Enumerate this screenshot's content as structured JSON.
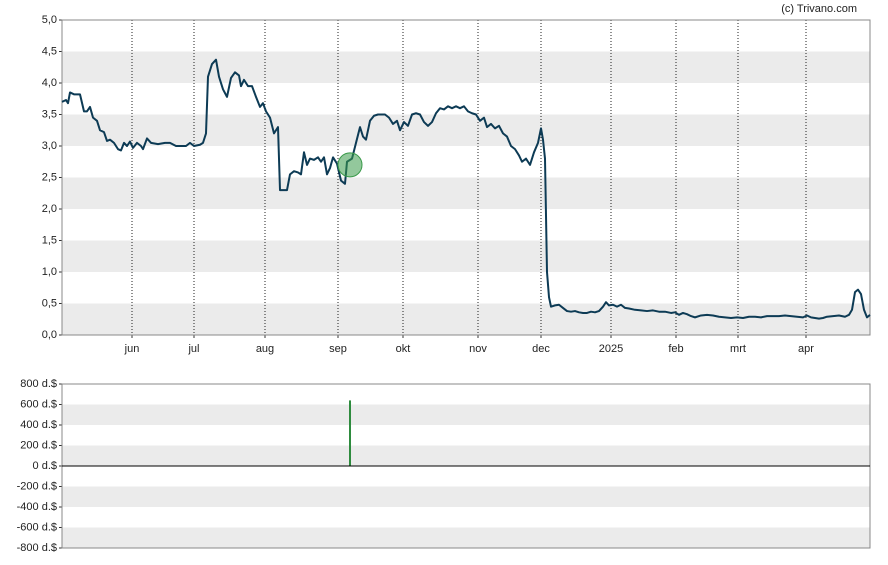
{
  "copyright": "(c) Trivano.com",
  "chart_data": [
    {
      "type": "line",
      "color": "#0d3b55",
      "xlim": [
        0,
        404
      ],
      "xticks": [
        {
          "value": 35,
          "label": "jun"
        },
        {
          "value": 66,
          "label": "jul"
        },
        {
          "value": 101.5,
          "label": "aug"
        },
        {
          "value": 138,
          "label": "sep"
        },
        {
          "value": 170.5,
          "label": "okt"
        },
        {
          "value": 208,
          "label": "nov"
        },
        {
          "value": 239.5,
          "label": "dec"
        },
        {
          "value": 274.5,
          "label": "2025"
        },
        {
          "value": 307,
          "label": "feb"
        },
        {
          "value": 338,
          "label": "mrt"
        },
        {
          "value": 372,
          "label": "apr"
        }
      ],
      "ylim": [
        0,
        5
      ],
      "yticks": [
        {
          "value": 0,
          "label": "0,0"
        },
        {
          "value": 0.5,
          "label": "0,5"
        },
        {
          "value": 1,
          "label": "1,0"
        },
        {
          "value": 1.5,
          "label": "1,5"
        },
        {
          "value": 2,
          "label": "2,0"
        },
        {
          "value": 2.5,
          "label": "2,5"
        },
        {
          "value": 3,
          "label": "3,0"
        },
        {
          "value": 3.5,
          "label": "3,5"
        },
        {
          "value": 4,
          "label": "4,0"
        },
        {
          "value": 4.5,
          "label": "4,5"
        },
        {
          "value": 5,
          "label": "5,0"
        }
      ],
      "x": [
        0,
        2,
        3,
        4,
        6,
        9,
        11,
        12.5,
        14,
        15.5,
        17.5,
        19,
        21,
        22.5,
        24,
        26,
        28,
        29.5,
        31,
        32.5,
        34,
        35.5,
        37.5,
        39.5,
        40.5,
        42.5,
        44.5,
        48,
        51.5,
        54,
        57,
        62,
        64,
        66,
        69,
        70.5,
        72,
        73,
        75,
        77,
        78.5,
        80.5,
        82.5,
        84.5,
        86.5,
        88.5,
        89.5,
        91,
        93,
        95,
        97,
        99,
        100.5,
        102,
        104,
        106,
        108,
        109,
        112.5,
        114,
        116,
        118,
        119.5,
        121,
        122.5,
        124,
        126,
        128,
        129.5,
        131,
        132.5,
        134,
        135.5,
        137.5,
        139.5,
        141.5,
        142.5,
        145,
        147,
        149,
        150.5,
        152,
        154,
        156,
        158,
        161.5,
        163.5,
        165.5,
        167.5,
        169,
        171,
        173,
        175,
        177,
        179,
        181,
        183,
        185,
        187,
        189,
        191,
        193,
        195,
        197,
        199,
        201,
        203,
        205,
        207,
        209,
        211,
        212.5,
        214.5,
        216.5,
        218.5,
        220.5,
        222.5,
        224.5,
        226.5,
        228.5,
        230,
        232,
        234,
        236,
        238,
        239.5,
        240.5,
        241.5,
        242.5,
        243.5,
        244.5,
        246.5,
        248.5,
        250.5,
        252.5,
        254.5,
        256.5,
        258.5,
        260.5,
        262.5,
        264.5,
        266.5,
        268.5,
        270.5,
        272,
        273.5,
        275.5,
        277.5,
        279.5,
        281.5,
        283.5,
        286.5,
        289.5,
        292.5,
        295.5,
        298.5,
        301.5,
        304.5,
        306.5,
        308.5,
        310.5,
        312.5,
        314.5,
        316.5,
        319.5,
        322.5,
        325.5,
        328.5,
        331.5,
        334.5,
        337.5,
        340.5,
        343.5,
        346.5,
        349.5,
        352.5,
        355.5,
        358.5,
        361.5,
        364.5,
        367.5,
        370.5,
        372.5,
        374.5,
        376.5,
        378.5,
        380.5,
        382.5,
        385.5,
        388.5,
        391.5,
        393.5,
        395,
        396.5,
        398,
        399.5,
        401,
        402.5,
        404
      ],
      "values": [
        3.7,
        3.73,
        3.68,
        3.85,
        3.82,
        3.82,
        3.55,
        3.55,
        3.62,
        3.45,
        3.4,
        3.25,
        3.22,
        3.08,
        3.1,
        3.05,
        2.95,
        2.93,
        3.05,
        3.0,
        3.07,
        2.97,
        3.05,
        3.0,
        2.95,
        3.12,
        3.05,
        3.03,
        3.05,
        3.05,
        3.0,
        3.0,
        3.05,
        3.0,
        3.02,
        3.05,
        3.2,
        4.1,
        4.3,
        4.37,
        4.1,
        3.9,
        3.78,
        4.08,
        4.17,
        4.12,
        3.95,
        4.05,
        3.95,
        3.95,
        3.78,
        3.62,
        3.68,
        3.55,
        3.45,
        3.2,
        3.3,
        2.3,
        2.3,
        2.55,
        2.6,
        2.58,
        2.55,
        2.9,
        2.7,
        2.8,
        2.78,
        2.82,
        2.75,
        2.82,
        2.55,
        2.65,
        2.82,
        2.72,
        2.45,
        2.4,
        2.75,
        2.8,
        3.05,
        3.3,
        3.15,
        3.1,
        3.4,
        3.48,
        3.5,
        3.5,
        3.45,
        3.35,
        3.4,
        3.25,
        3.38,
        3.32,
        3.5,
        3.52,
        3.5,
        3.38,
        3.32,
        3.38,
        3.52,
        3.6,
        3.58,
        3.63,
        3.6,
        3.63,
        3.6,
        3.63,
        3.55,
        3.52,
        3.5,
        3.4,
        3.45,
        3.3,
        3.35,
        3.28,
        3.32,
        3.2,
        3.15,
        3.0,
        2.95,
        2.85,
        2.75,
        2.8,
        2.7,
        2.9,
        3.05,
        3.28,
        3.1,
        2.8,
        1.0,
        0.6,
        0.45,
        0.47,
        0.48,
        0.43,
        0.38,
        0.37,
        0.38,
        0.36,
        0.35,
        0.35,
        0.37,
        0.36,
        0.38,
        0.45,
        0.52,
        0.47,
        0.48,
        0.45,
        0.48,
        0.43,
        0.42,
        0.4,
        0.39,
        0.38,
        0.39,
        0.37,
        0.37,
        0.35,
        0.36,
        0.32,
        0.35,
        0.33,
        0.3,
        0.28,
        0.31,
        0.32,
        0.31,
        0.29,
        0.28,
        0.27,
        0.28,
        0.27,
        0.29,
        0.29,
        0.28,
        0.3,
        0.3,
        0.3,
        0.31,
        0.3,
        0.29,
        0.28,
        0.31,
        0.28,
        0.27,
        0.26,
        0.27,
        0.29,
        0.3,
        0.31,
        0.29,
        0.32,
        0.4,
        0.68,
        0.72,
        0.65,
        0.4,
        0.28,
        0.32
      ],
      "marker": {
        "x": 144,
        "value": 2.7,
        "color": "#3a9a4a"
      },
      "band_color": "#ebebeb",
      "grid": true
    },
    {
      "type": "bar",
      "color": "#2e8b3e",
      "xlim": [
        0,
        404
      ],
      "ylim": [
        -800,
        800
      ],
      "yticks": [
        {
          "value": -800,
          "label": "-800 d.$"
        },
        {
          "value": -600,
          "label": "-600 d.$"
        },
        {
          "value": -400,
          "label": "-400 d.$"
        },
        {
          "value": -200,
          "label": "-200 d.$"
        },
        {
          "value": 0,
          "label": "0 d.$"
        },
        {
          "value": 200,
          "label": "200 d.$"
        },
        {
          "value": 400,
          "label": "400 d.$"
        },
        {
          "value": 600,
          "label": "600 d.$"
        },
        {
          "value": 800,
          "label": "800 d.$"
        }
      ],
      "x": [
        144
      ],
      "values": [
        640
      ],
      "band_color": "#ebebeb"
    }
  ]
}
